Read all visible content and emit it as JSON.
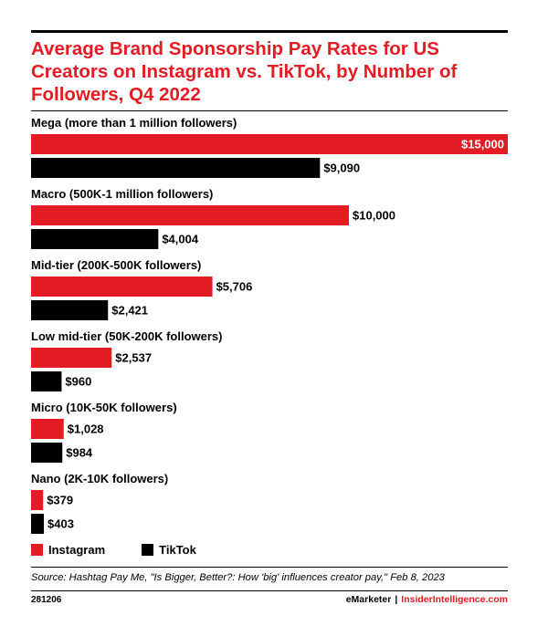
{
  "title": "Average Brand Sponsorship Pay Rates for US Creators on Instagram vs. TikTok, by Number of Followers, Q4 2022",
  "colors": {
    "instagram": "#e31b23",
    "tiktok": "#000000",
    "accent": "#e31b23"
  },
  "chart_data": {
    "type": "bar",
    "orientation": "horizontal",
    "categories": [
      "Mega (more than 1 million followers)",
      "Macro (500K-1 million followers)",
      "Mid-tier (200K-500K followers)",
      "Low mid-tier (50K-200K followers)",
      "Micro (10K-50K followers)",
      "Nano (2K-10K followers)"
    ],
    "series": [
      {
        "name": "Instagram",
        "color": "#e31b23",
        "values": [
          15000,
          10000,
          5706,
          2537,
          1028,
          379
        ],
        "labels": [
          "$15,000",
          "$10,000",
          "$5,706",
          "$2,537",
          "$1,028",
          "$379"
        ]
      },
      {
        "name": "TikTok",
        "color": "#000000",
        "values": [
          9090,
          4004,
          2421,
          960,
          984,
          403
        ],
        "labels": [
          "$9,090",
          "$4,004",
          "$2,421",
          "$960",
          "$984",
          "$403"
        ]
      }
    ],
    "xlim": [
      0,
      15000
    ],
    "grid": false,
    "legend": "bottom-left"
  },
  "legend": {
    "instagram": "Instagram",
    "tiktok": "TikTok"
  },
  "source": "Source: Hashtag Pay Me, \"Is Bigger, Better?: How 'big' influences creator pay,\" Feb 8, 2023",
  "chart_id": "281206",
  "credits": {
    "emarketer": "eMarketer",
    "separator": "|",
    "insider": "InsiderIntelligence.com"
  }
}
